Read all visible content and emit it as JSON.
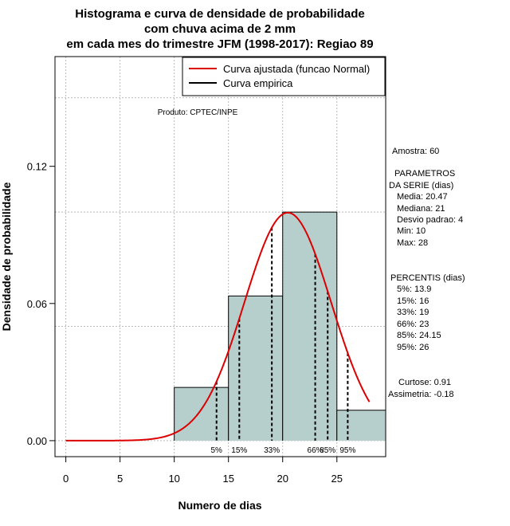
{
  "chart_data": {
    "type": "bar",
    "title_lines": [
      "Histograma e curva de densidade de probabilidade",
      "com chuva acima de 2 mm",
      "em cada mes do trimestre JFM (1998-2017): Regiao 89"
    ],
    "xlabel": "Numero de dias",
    "ylabel": "Densidade de probabilidade",
    "xlim": [
      -1,
      29.5
    ],
    "ylim": [
      -0.007,
      0.168
    ],
    "x_ticks": [
      0,
      5,
      10,
      15,
      20,
      25
    ],
    "y_ticks": [
      0.0,
      0.06,
      0.12
    ],
    "y_tick_labels": [
      "0.00",
      "0.06",
      "0.12"
    ],
    "x_grid": [
      0,
      5,
      10,
      15,
      20,
      25
    ],
    "y_grid": [
      0,
      0.05,
      0.1,
      0.15
    ],
    "bins": [
      {
        "x0": 10,
        "x1": 15,
        "density": 0.0233
      },
      {
        "x0": 15,
        "x1": 20,
        "density": 0.0633
      },
      {
        "x0": 20,
        "x1": 25,
        "density": 0.1
      },
      {
        "x0": 25,
        "x1": 30,
        "density": 0.0133
      }
    ],
    "bar_fill": "#b7cfcc",
    "curve": {
      "name": "Curva ajustada (funcao Normal)",
      "distribution": "normal",
      "mean": 20.47,
      "sd": 4,
      "x_range": [
        0,
        28
      ],
      "color": "#dd0000"
    },
    "empirical": {
      "name": "Curva empirica",
      "color": "#000000"
    },
    "legend_position": "top-right",
    "percentiles": [
      {
        "label": "5%",
        "x": 13.9
      },
      {
        "label": "15%",
        "x": 16
      },
      {
        "label": "33%",
        "x": 19
      },
      {
        "label": "66%",
        "x": 23
      },
      {
        "label": "85%",
        "x": 24.15
      },
      {
        "label": "95%",
        "x": 26
      }
    ],
    "product_note": "Produto: CPTEC/INPE"
  },
  "stats_panel": {
    "sample": "Amostra: 60",
    "params_title_1": "PARAMETROS",
    "params_title_2": "DA SERIE (dias)",
    "params": [
      "Media: 20.47",
      "Mediana: 21",
      "Desvio padrao: 4",
      "Min: 10",
      "Max: 28"
    ],
    "percentis_title": "PERCENTIS (dias)",
    "percentis": [
      "5%: 13.9",
      "15%: 16",
      "33%: 19",
      "66%: 23",
      "85%: 24.15",
      "95%: 26"
    ],
    "curtose": "Curtose: 0.91",
    "assimetria": "Assimetria: -0.18"
  }
}
